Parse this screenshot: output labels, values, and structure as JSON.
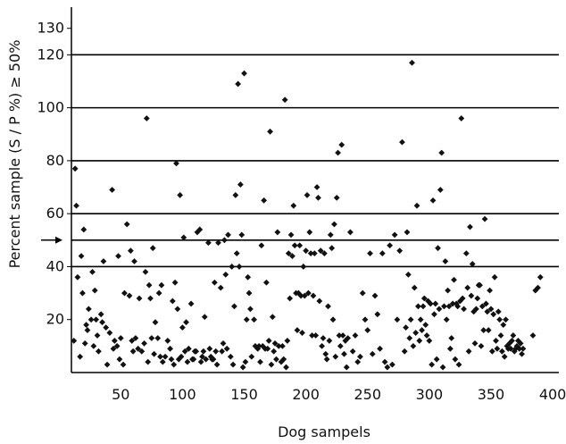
{
  "chart_data": {
    "type": "scatter",
    "xlabel": "Dog sampels",
    "ylabel": "Percent sample (S / P %) ≥ 50%",
    "xlim": [
      10,
      405
    ],
    "ylim": [
      0,
      138
    ],
    "xticks": [
      50,
      100,
      150,
      200,
      250,
      300,
      350,
      400
    ],
    "yticks": [
      20,
      40,
      60,
      80,
      100,
      120,
      130
    ],
    "grid_lines_y": [
      40,
      50,
      60,
      80,
      100,
      120
    ],
    "cutoff_marker_y": 50,
    "grid": "horizontal",
    "marker_color": "#111111",
    "series": [
      {
        "points": [
          [
            12,
            12
          ],
          [
            13,
            77
          ],
          [
            14,
            63
          ],
          [
            15,
            36
          ],
          [
            17,
            6
          ],
          [
            18,
            44
          ],
          [
            19,
            30
          ],
          [
            20,
            54
          ],
          [
            21,
            11
          ],
          [
            22,
            18
          ],
          [
            23,
            16
          ],
          [
            24,
            24
          ],
          [
            26,
            20
          ],
          [
            27,
            38
          ],
          [
            28,
            10
          ],
          [
            29,
            31
          ],
          [
            30,
            20
          ],
          [
            31,
            14
          ],
          [
            32,
            8
          ],
          [
            34,
            22
          ],
          [
            35,
            19
          ],
          [
            36,
            42
          ],
          [
            38,
            17
          ],
          [
            39,
            3
          ],
          [
            41,
            15
          ],
          [
            43,
            69
          ],
          [
            44,
            9
          ],
          [
            45,
            12
          ],
          [
            47,
            10
          ],
          [
            48,
            44
          ],
          [
            49,
            5
          ],
          [
            50,
            13
          ],
          [
            52,
            3
          ],
          [
            53,
            30
          ],
          [
            55,
            56
          ],
          [
            57,
            29
          ],
          [
            58,
            46
          ],
          [
            59,
            12
          ],
          [
            60,
            8
          ],
          [
            61,
            42
          ],
          [
            62,
            13
          ],
          [
            64,
            9
          ],
          [
            65,
            28
          ],
          [
            67,
            8
          ],
          [
            69,
            11
          ],
          [
            70,
            38
          ],
          [
            71,
            96
          ],
          [
            72,
            4
          ],
          [
            73,
            33
          ],
          [
            74,
            28
          ],
          [
            75,
            13
          ],
          [
            76,
            47
          ],
          [
            77,
            7
          ],
          [
            78,
            19
          ],
          [
            80,
            13
          ],
          [
            81,
            30
          ],
          [
            82,
            6
          ],
          [
            83,
            33
          ],
          [
            84,
            4
          ],
          [
            86,
            6
          ],
          [
            88,
            12
          ],
          [
            90,
            9
          ],
          [
            91,
            5
          ],
          [
            92,
            27
          ],
          [
            93,
            3
          ],
          [
            94,
            34
          ],
          [
            95,
            79
          ],
          [
            96,
            24
          ],
          [
            97,
            5
          ],
          [
            98,
            67
          ],
          [
            99,
            6
          ],
          [
            100,
            17
          ],
          [
            101,
            51
          ],
          [
            102,
            8
          ],
          [
            103,
            19
          ],
          [
            104,
            4
          ],
          [
            105,
            9
          ],
          [
            107,
            26
          ],
          [
            108,
            5
          ],
          [
            109,
            5
          ],
          [
            110,
            8
          ],
          [
            111,
            8
          ],
          [
            112,
            53
          ],
          [
            114,
            54
          ],
          [
            115,
            4
          ],
          [
            116,
            6
          ],
          [
            117,
            8
          ],
          [
            118,
            21
          ],
          [
            119,
            5
          ],
          [
            121,
            49
          ],
          [
            122,
            9
          ],
          [
            123,
            6
          ],
          [
            124,
            5
          ],
          [
            125,
            5
          ],
          [
            126,
            34
          ],
          [
            127,
            8
          ],
          [
            128,
            3
          ],
          [
            129,
            49
          ],
          [
            131,
            32
          ],
          [
            132,
            8
          ],
          [
            133,
            11
          ],
          [
            134,
            50
          ],
          [
            135,
            37
          ],
          [
            136,
            9
          ],
          [
            137,
            52
          ],
          [
            139,
            6
          ],
          [
            140,
            40
          ],
          [
            141,
            3
          ],
          [
            142,
            25
          ],
          [
            143,
            67
          ],
          [
            144,
            45
          ],
          [
            145,
            109
          ],
          [
            146,
            40
          ],
          [
            147,
            71
          ],
          [
            148,
            52
          ],
          [
            149,
            2
          ],
          [
            150,
            113
          ],
          [
            151,
            4
          ],
          [
            152,
            20
          ],
          [
            153,
            36
          ],
          [
            154,
            30
          ],
          [
            155,
            24
          ],
          [
            156,
            6
          ],
          [
            158,
            20
          ],
          [
            159,
            10
          ],
          [
            161,
            9
          ],
          [
            162,
            10
          ],
          [
            163,
            4
          ],
          [
            164,
            48
          ],
          [
            165,
            10
          ],
          [
            166,
            65
          ],
          [
            167,
            9
          ],
          [
            168,
            34
          ],
          [
            169,
            9
          ],
          [
            170,
            12
          ],
          [
            171,
            91
          ],
          [
            172,
            3
          ],
          [
            173,
            21
          ],
          [
            174,
            8
          ],
          [
            175,
            11
          ],
          [
            176,
            5
          ],
          [
            177,
            53
          ],
          [
            178,
            10
          ],
          [
            180,
            4
          ],
          [
            181,
            10
          ],
          [
            182,
            5
          ],
          [
            183,
            103
          ],
          [
            184,
            2
          ],
          [
            185,
            12
          ],
          [
            186,
            45
          ],
          [
            187,
            28
          ],
          [
            188,
            52
          ],
          [
            189,
            44
          ],
          [
            190,
            63
          ],
          [
            191,
            48
          ],
          [
            192,
            30
          ],
          [
            193,
            16
          ],
          [
            194,
            30
          ],
          [
            195,
            48
          ],
          [
            196,
            29
          ],
          [
            197,
            15
          ],
          [
            198,
            40
          ],
          [
            199,
            29
          ],
          [
            200,
            46
          ],
          [
            201,
            67
          ],
          [
            202,
            30
          ],
          [
            203,
            53
          ],
          [
            204,
            45
          ],
          [
            205,
            14
          ],
          [
            206,
            29
          ],
          [
            207,
            45
          ],
          [
            208,
            14
          ],
          [
            209,
            70
          ],
          [
            210,
            66
          ],
          [
            211,
            27
          ],
          [
            212,
            46
          ],
          [
            213,
            10
          ],
          [
            214,
            13
          ],
          [
            215,
            45
          ],
          [
            216,
            7
          ],
          [
            217,
            5
          ],
          [
            218,
            25
          ],
          [
            219,
            12
          ],
          [
            220,
            52
          ],
          [
            221,
            47
          ],
          [
            222,
            20
          ],
          [
            223,
            56
          ],
          [
            224,
            6
          ],
          [
            225,
            66
          ],
          [
            226,
            83
          ],
          [
            227,
            14
          ],
          [
            228,
            10
          ],
          [
            229,
            86
          ],
          [
            230,
            14
          ],
          [
            231,
            7
          ],
          [
            232,
            12
          ],
          [
            233,
            2
          ],
          [
            234,
            13
          ],
          [
            236,
            53
          ],
          [
            238,
            8
          ],
          [
            240,
            14
          ],
          [
            242,
            4
          ],
          [
            244,
            6
          ],
          [
            246,
            30
          ],
          [
            248,
            20
          ],
          [
            250,
            16
          ],
          [
            252,
            45
          ],
          [
            254,
            7
          ],
          [
            256,
            29
          ],
          [
            258,
            22
          ],
          [
            260,
            9
          ],
          [
            262,
            45
          ],
          [
            264,
            4
          ],
          [
            266,
            2
          ],
          [
            268,
            48
          ],
          [
            270,
            3
          ],
          [
            272,
            52
          ],
          [
            274,
            20
          ],
          [
            276,
            46
          ],
          [
            278,
            87
          ],
          [
            280,
            8
          ],
          [
            281,
            17
          ],
          [
            282,
            53
          ],
          [
            283,
            37
          ],
          [
            284,
            13
          ],
          [
            285,
            20
          ],
          [
            286,
            117
          ],
          [
            287,
            10
          ],
          [
            288,
            32
          ],
          [
            289,
            15
          ],
          [
            290,
            63
          ],
          [
            291,
            25
          ],
          [
            292,
            12
          ],
          [
            293,
            20
          ],
          [
            294,
            16
          ],
          [
            295,
            25
          ],
          [
            296,
            28
          ],
          [
            297,
            18
          ],
          [
            298,
            14
          ],
          [
            299,
            27
          ],
          [
            300,
            12
          ],
          [
            301,
            26
          ],
          [
            302,
            3
          ],
          [
            303,
            65
          ],
          [
            304,
            22
          ],
          [
            305,
            26
          ],
          [
            306,
            5
          ],
          [
            307,
            47
          ],
          [
            308,
            24
          ],
          [
            309,
            69
          ],
          [
            310,
            83
          ],
          [
            311,
            2
          ],
          [
            312,
            25
          ],
          [
            313,
            42
          ],
          [
            314,
            20
          ],
          [
            315,
            31
          ],
          [
            316,
            25
          ],
          [
            317,
            9
          ],
          [
            318,
            13
          ],
          [
            319,
            26
          ],
          [
            320,
            35
          ],
          [
            321,
            5
          ],
          [
            322,
            26
          ],
          [
            323,
            25
          ],
          [
            324,
            3
          ],
          [
            325,
            27
          ],
          [
            326,
            96
          ],
          [
            327,
            28
          ],
          [
            328,
            24
          ],
          [
            330,
            45
          ],
          [
            331,
            32
          ],
          [
            332,
            8
          ],
          [
            333,
            55
          ],
          [
            334,
            29
          ],
          [
            335,
            41
          ],
          [
            336,
            23
          ],
          [
            337,
            11
          ],
          [
            338,
            24
          ],
          [
            339,
            28
          ],
          [
            340,
            33
          ],
          [
            341,
            33
          ],
          [
            342,
            10
          ],
          [
            343,
            25
          ],
          [
            344,
            16
          ],
          [
            345,
            58
          ],
          [
            346,
            26
          ],
          [
            347,
            23
          ],
          [
            348,
            16
          ],
          [
            349,
            31
          ],
          [
            350,
            24
          ],
          [
            351,
            8
          ],
          [
            352,
            22
          ],
          [
            353,
            36
          ],
          [
            354,
            12
          ],
          [
            355,
            9
          ],
          [
            356,
            23
          ],
          [
            357,
            20
          ],
          [
            358,
            14
          ],
          [
            359,
            8
          ],
          [
            360,
            18
          ],
          [
            361,
            6
          ],
          [
            362,
            20
          ],
          [
            363,
            10
          ],
          [
            364,
            9
          ],
          [
            365,
            11
          ],
          [
            366,
            9
          ],
          [
            367,
            12
          ],
          [
            368,
            14
          ],
          [
            369,
            8
          ],
          [
            370,
            9
          ],
          [
            371,
            10
          ],
          [
            372,
            12
          ],
          [
            373,
            9
          ],
          [
            374,
            11
          ],
          [
            375,
            7
          ],
          [
            376,
            9
          ],
          [
            384,
            14
          ],
          [
            386,
            31
          ],
          [
            388,
            32
          ],
          [
            390,
            36
          ]
        ]
      }
    ]
  }
}
